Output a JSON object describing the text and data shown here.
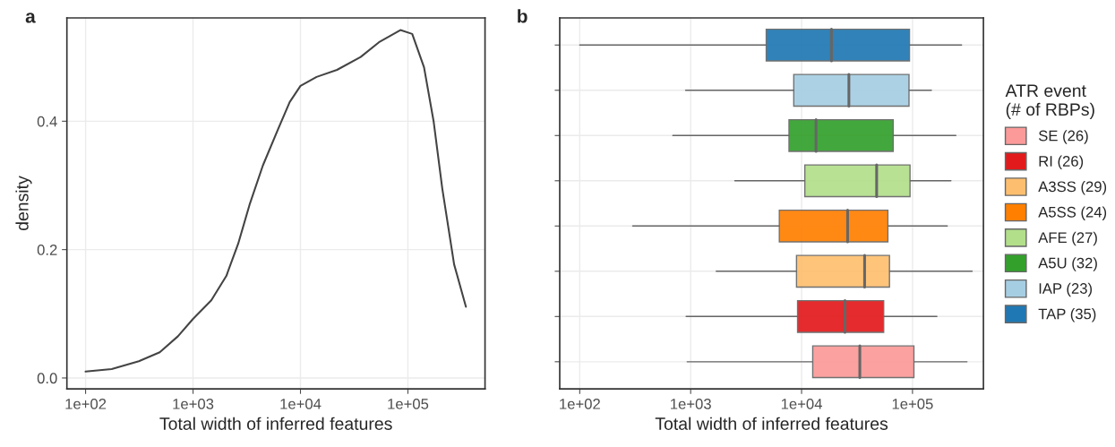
{
  "chart_data": [
    {
      "type": "line",
      "title": "a",
      "xlabel": "Total width of inferred features",
      "ylabel": "density",
      "log": "x",
      "grid": true,
      "xlim": [
        67,
        522000
      ],
      "xticks": [
        {
          "value": 100,
          "label": "1e+02"
        },
        {
          "value": 1000,
          "label": "1e+03"
        },
        {
          "value": 10000,
          "label": "1e+04"
        },
        {
          "value": 100000,
          "label": "1e+05"
        }
      ],
      "ylim": [
        -0.017,
        0.561
      ],
      "yticks": [
        {
          "value": 0,
          "label": "0.0"
        },
        0.2,
        0.4
      ],
      "series": [
        {
          "color": "#444444",
          "x": [
            100,
            175,
            313,
            490,
            724,
            1000,
            1479,
            2042,
            2630,
            3388,
            4467,
            6166,
            7943,
            10000,
            14125,
            21878,
            36308,
            53703,
            85114,
            109648,
            141254,
            173780,
            208930,
            269153,
            346737
          ],
          "values": [
            0.01,
            0.014,
            0.026,
            0.04,
            0.065,
            0.092,
            0.121,
            0.159,
            0.209,
            0.272,
            0.331,
            0.387,
            0.43,
            0.455,
            0.469,
            0.48,
            0.5,
            0.523,
            0.542,
            0.536,
            0.484,
            0.399,
            0.295,
            0.177,
            0.111
          ]
        }
      ]
    },
    {
      "type": "box",
      "title": "b",
      "xlabel": "Total width of inferred features",
      "orientation": "horizontal",
      "log": "x",
      "grid": true,
      "tick_labels": "x",
      "legend": "right",
      "legend_title": "ATR event\n(# of RBPs)",
      "xlim": [
        66,
        436000
      ],
      "xticks": [
        {
          "value": 100,
          "label": "1e+02"
        },
        {
          "value": 1000,
          "label": "1e+03"
        },
        {
          "value": 10000,
          "label": "1e+04"
        },
        {
          "value": 100000,
          "label": "1e+05"
        }
      ],
      "categories": [
        null,
        null,
        null,
        null,
        null,
        null,
        null,
        null
      ],
      "series": [
        {
          "name": "SE (26)",
          "color": "#fb9a99",
          "boxes": [
            null,
            null,
            null,
            null,
            null,
            null,
            null,
            {
              "low": 930,
              "q1": 12600,
              "median": 33500,
              "q3": 103000,
              "high": 310000
            }
          ]
        },
        {
          "name": "RI (26)",
          "color": "#e31a1c",
          "boxes": [
            null,
            null,
            null,
            null,
            null,
            null,
            {
              "low": 910,
              "q1": 9200,
              "median": 24600,
              "q3": 55000,
              "high": 166000
            },
            null
          ]
        },
        {
          "name": "A3SS (29)",
          "color": "#fdbf6f",
          "boxes": [
            null,
            null,
            null,
            null,
            null,
            {
              "low": 1700,
              "q1": 9000,
              "median": 37000,
              "q3": 62000,
              "high": 345000
            },
            null,
            null
          ]
        },
        {
          "name": "A5SS (24)",
          "color": "#ff7f00",
          "boxes": [
            null,
            null,
            null,
            null,
            {
              "low": 300,
              "q1": 6300,
              "median": 26000,
              "q3": 60000,
              "high": 206000
            },
            null,
            null,
            null
          ]
        },
        {
          "name": "AFE (27)",
          "color": "#b2df8a",
          "boxes": [
            null,
            null,
            null,
            {
              "low": 2500,
              "q1": 10700,
              "median": 47500,
              "q3": 95000,
              "high": 222000
            },
            null,
            null,
            null,
            null
          ]
        },
        {
          "name": "A5U (32)",
          "color": "#33a02c",
          "boxes": [
            null,
            null,
            {
              "low": 690,
              "q1": 7700,
              "median": 13500,
              "q3": 67000,
              "high": 246000
            },
            null,
            null,
            null,
            null,
            null
          ]
        },
        {
          "name": "IAP (23)",
          "color": "#a6cee3",
          "boxes": [
            null,
            {
              "low": 900,
              "q1": 8500,
              "median": 26700,
              "q3": 93000,
              "high": 148000
            },
            null,
            null,
            null,
            null,
            null,
            null
          ]
        },
        {
          "name": "TAP (35)",
          "color": "#1f78b4",
          "boxes": [
            {
              "low": 100,
              "q1": 4800,
              "median": 18600,
              "q3": 94000,
              "high": 277000
            },
            null,
            null,
            null,
            null,
            null,
            null,
            null
          ]
        }
      ]
    }
  ]
}
